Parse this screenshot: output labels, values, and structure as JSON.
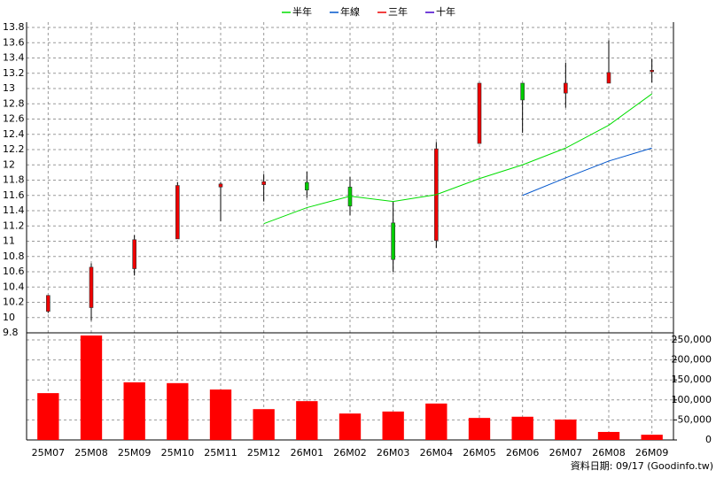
{
  "chart_data": {
    "type": "candlestick",
    "categories": [
      "25M07",
      "25M08",
      "25M09",
      "25M10",
      "25M11",
      "25M12",
      "26M01",
      "26M02",
      "26M03",
      "26M04",
      "26M05",
      "26M06",
      "26M07",
      "26M08",
      "26M09"
    ],
    "open": [
      10.08,
      10.13,
      10.64,
      11.03,
      11.71,
      11.74,
      11.77,
      11.71,
      11.24,
      11.01,
      12.28,
      13.07,
      12.94,
      13.07,
      13.22
    ],
    "high": [
      10.29,
      10.71,
      11.08,
      11.77,
      11.77,
      11.88,
      11.91,
      11.84,
      11.52,
      12.3,
      13.07,
      13.07,
      13.34,
      13.63,
      13.39
    ],
    "low": [
      10.06,
      9.96,
      10.55,
      11.03,
      11.26,
      11.52,
      11.57,
      11.34,
      10.6,
      10.91,
      12.28,
      12.42,
      12.75,
      13.07,
      13.08
    ],
    "close": [
      10.29,
      10.66,
      11.02,
      11.73,
      11.75,
      11.78,
      11.67,
      11.46,
      10.76,
      12.21,
      13.07,
      12.85,
      13.07,
      13.21,
      13.24
    ],
    "up_color": "#ee0000",
    "down_color": "#00cc00",
    "series": [
      {
        "name": "半年",
        "color": "#00dd00",
        "values": [
          null,
          null,
          null,
          null,
          null,
          11.23,
          11.44,
          11.59,
          11.52,
          11.61,
          11.82,
          12.0,
          12.22,
          12.52,
          12.93
        ]
      },
      {
        "name": "年線",
        "color": "#0055cc",
        "values": [
          null,
          null,
          null,
          null,
          null,
          null,
          null,
          null,
          null,
          null,
          null,
          11.6,
          11.83,
          12.05,
          12.22
        ]
      },
      {
        "name": "三年",
        "color": "#ee0000",
        "values": [
          null,
          null,
          null,
          null,
          null,
          null,
          null,
          null,
          null,
          null,
          null,
          null,
          null,
          null,
          null
        ]
      },
      {
        "name": "十年",
        "color": "#4400cc",
        "values": [
          null,
          null,
          null,
          null,
          null,
          null,
          null,
          null,
          null,
          null,
          null,
          null,
          null,
          null,
          null
        ]
      }
    ],
    "ylim": [
      9.8,
      13.8
    ],
    "yticks": [
      9.8,
      10,
      10.2,
      10.4,
      10.6,
      10.8,
      11,
      11.2,
      11.4,
      11.6,
      11.8,
      12,
      12.2,
      12.4,
      12.6,
      12.8,
      13,
      13.2,
      13.4,
      13.6,
      13.8
    ],
    "grid": true,
    "volume": {
      "color": "#ff0000",
      "values": [
        117000,
        261000,
        144000,
        142000,
        126000,
        77000,
        97000,
        66000,
        71000,
        91000,
        55000,
        58000,
        51000,
        20000,
        13000
      ],
      "ylim": [
        0,
        250000
      ],
      "yticks": [
        0,
        {
          "value": 50000,
          "label": "50,000"
        },
        {
          "value": 100000,
          "label": "100,000"
        },
        {
          "value": 150000,
          "label": "150,000"
        },
        {
          "value": 200000,
          "label": "200,000"
        },
        {
          "value": 250000,
          "label": "250,000"
        }
      ]
    },
    "footnote": "資料日期: 09/17  (Goodinfo.tw)"
  }
}
